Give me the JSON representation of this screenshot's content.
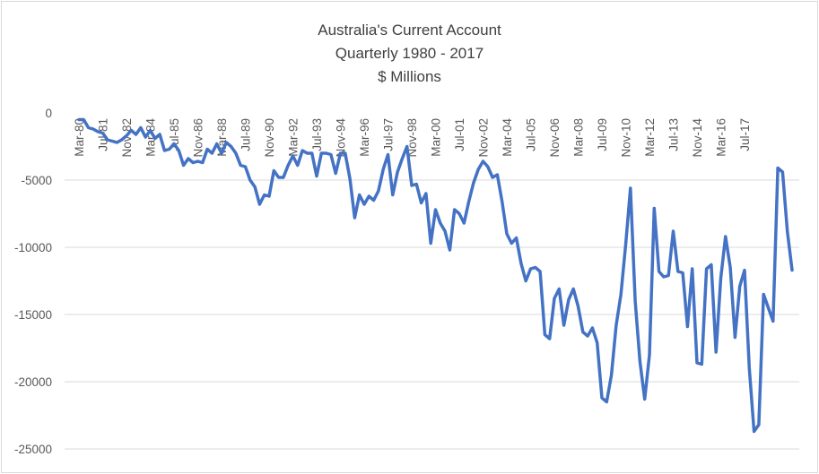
{
  "chart_data": {
    "type": "line",
    "title": [
      "Australia's Current Account",
      "Quarterly 1980 - 2017",
      "$ Millions"
    ],
    "xlabel": "",
    "ylabel": "",
    "ylim": [
      -25000,
      0
    ],
    "yticks": [
      0,
      -5000,
      -10000,
      -15000,
      -20000,
      -25000
    ],
    "ytick_labels": [
      "0",
      "-5000",
      "-10000",
      "-15000",
      "-20000",
      "-25000"
    ],
    "grid": "horizontal",
    "legend": "none",
    "x_start": "Mar-80",
    "x_end": "Sep-17",
    "x_tick_labels": [
      "Mar-80",
      "Jul-81",
      "Nov-82",
      "Mar-84",
      "Jul-85",
      "Nov-86",
      "Mar-88",
      "Jul-89",
      "Nov-90",
      "Mar-92",
      "Jul-93",
      "Nov-94",
      "Mar-96",
      "Jul-97",
      "Nov-98",
      "Mar-00",
      "Jul-01",
      "Nov-02",
      "Mar-04",
      "Jul-05",
      "Nov-06",
      "Mar-08",
      "Jul-09",
      "Nov-10",
      "Mar-12",
      "Jul-13",
      "Nov-14",
      "Mar-16",
      "Jul-17"
    ],
    "series": [
      {
        "color": "#4472c4",
        "values": [
          -500,
          -500,
          -1100,
          -1200,
          -1400,
          -1500,
          -2000,
          -2100,
          -2200,
          -2000,
          -1700,
          -1300,
          -1600,
          -1100,
          -1800,
          -1300,
          -1900,
          -1600,
          -2800,
          -2700,
          -2300,
          -2800,
          -3900,
          -3400,
          -3700,
          -3600,
          -3700,
          -2700,
          -3000,
          -2300,
          -3000,
          -2200,
          -2500,
          -3000,
          -3900,
          -4000,
          -5000,
          -5500,
          -6800,
          -6100,
          -6200,
          -4300,
          -4800,
          -4800,
          -3900,
          -3200,
          -3900,
          -2800,
          -3000,
          -3000,
          -4700,
          -3000,
          -3000,
          -3100,
          -4500,
          -3000,
          -3000,
          -4900,
          -7800,
          -6100,
          -6800,
          -6200,
          -6500,
          -5800,
          -4200,
          -3100,
          -6100,
          -4400,
          -3400,
          -2500,
          -5400,
          -5300,
          -6700,
          -6000,
          -9700,
          -7200,
          -8200,
          -8800,
          -10200,
          -7200,
          -7500,
          -8200,
          -6600,
          -5200,
          -4200,
          -3600,
          -4000,
          -4800,
          -4600,
          -6600,
          -9000,
          -9700,
          -9300,
          -11200,
          -12500,
          -11600,
          -11500,
          -11800,
          -16500,
          -16800,
          -13800,
          -13100,
          -15800,
          -13900,
          -13100,
          -14400,
          -16300,
          -16600,
          -16000,
          -17100,
          -21200,
          -21500,
          -19500,
          -15800,
          -13500,
          -9800,
          -5600,
          -14000,
          -18500,
          -21300,
          -18000,
          -7100,
          -11800,
          -12200,
          -12100,
          -8800,
          -11800,
          -11900,
          -15900,
          -11600,
          -18600,
          -18700,
          -11600,
          -11300,
          -17800,
          -12300,
          -9200,
          -11500,
          -16700,
          -12900,
          -11700,
          -19000,
          -23700,
          -23200,
          -13500,
          -14500,
          -15500,
          -4100,
          -4400,
          -8800,
          -11700
        ]
      }
    ]
  }
}
